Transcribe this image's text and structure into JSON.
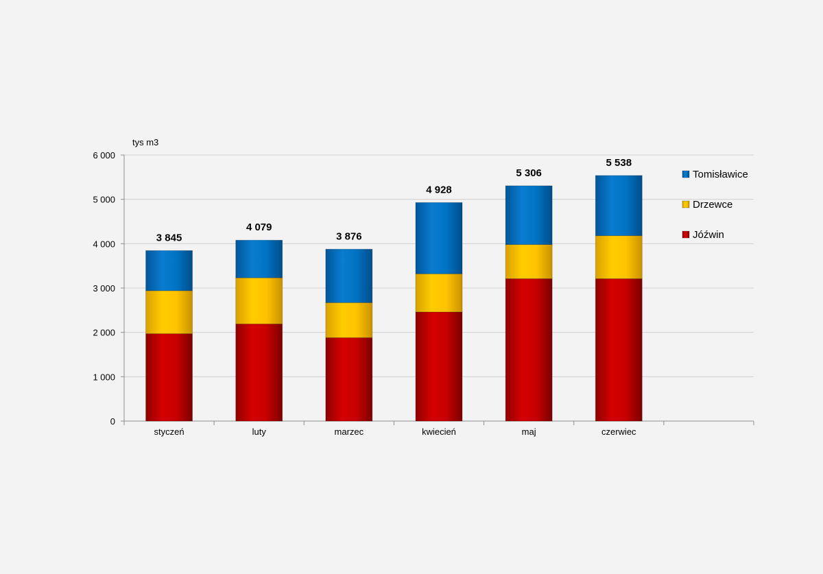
{
  "chart_data": {
    "type": "bar",
    "stacked": true,
    "title": "",
    "ylabel": "tys m3",
    "xlabel": "",
    "ylim": [
      0,
      6000
    ],
    "yticks": [
      0,
      1000,
      2000,
      3000,
      4000,
      5000,
      6000
    ],
    "ytick_labels": [
      "0",
      "1 000",
      "2 000",
      "3 000",
      "4 000",
      "5 000",
      "6 000"
    ],
    "categories": [
      "styczeń",
      "luty",
      "marzec",
      "kwiecień",
      "maj",
      "czerwiec"
    ],
    "series": [
      {
        "name": "Jóźwin",
        "color": "#c00000",
        "values": [
          1970,
          2190,
          1880,
          2460,
          3210,
          3210
        ]
      },
      {
        "name": "Drzewce",
        "color": "#ffc000",
        "values": [
          970,
          1040,
          790,
          860,
          770,
          970
        ]
      },
      {
        "name": "Tomisławice",
        "color": "#0070c0",
        "values": [
          905,
          849,
          1206,
          1608,
          1326,
          1358
        ]
      }
    ],
    "totals": [
      3845,
      4079,
      3876,
      4928,
      5306,
      5538
    ],
    "total_labels": [
      "3 845",
      "4 079",
      "3 876",
      "4 928",
      "5 306",
      "5 538"
    ],
    "legend": {
      "position": "right",
      "order": [
        "Tomisławice",
        "Drzewce",
        "Jóźwin"
      ]
    },
    "grid": true
  }
}
